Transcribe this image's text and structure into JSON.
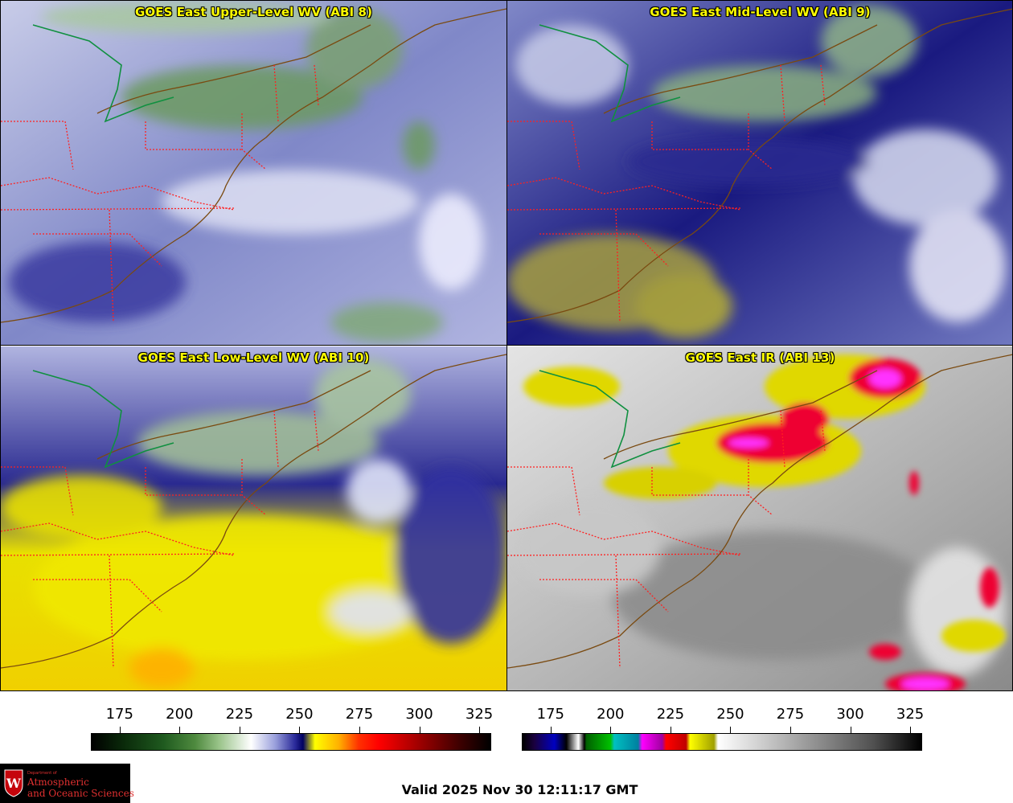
{
  "panels": [
    {
      "title": "GOES East Upper-Level WV (ABI 8)",
      "style": "wv_upper"
    },
    {
      "title": "GOES East Mid-Level WV (ABI 9)",
      "style": "wv_mid"
    },
    {
      "title": "GOES East Low-Level WV (ABI 10)",
      "style": "wv_low"
    },
    {
      "title": "GOES East IR (ABI 13)",
      "style": "ir"
    }
  ],
  "colorbars": {
    "wv": {
      "ticks": [
        "175",
        "200",
        "225",
        "250",
        "275",
        "300",
        "325"
      ],
      "min": 163,
      "max": 330
    },
    "ir": {
      "ticks": [
        "175",
        "200",
        "225",
        "250",
        "275",
        "300",
        "325"
      ],
      "min": 163,
      "max": 330
    }
  },
  "logo": {
    "dept": "Department of",
    "line1": "Atmospheric",
    "line2": "and Oceanic Sciences",
    "crest_letter": "W"
  },
  "valid_time": "Valid 2025 Nov 30 12:11:17 GMT",
  "colors": {
    "coast": "#7a4a10",
    "border": "#ff2020",
    "boundary": "#109040",
    "title": "#ffff00"
  }
}
